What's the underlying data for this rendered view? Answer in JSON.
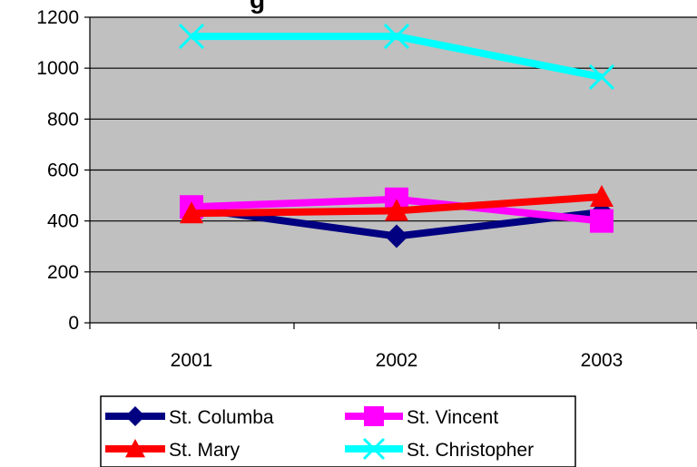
{
  "chart_data": {
    "type": "line",
    "title": "g",
    "xlabel": "",
    "ylabel": "",
    "categories": [
      "2001",
      "2002",
      "2003"
    ],
    "ylim": [
      0,
      1200
    ],
    "yticks": [
      0,
      200,
      400,
      600,
      800,
      1000,
      1200
    ],
    "grid": true,
    "plot_background": "#c0c0c0",
    "legend_placement": "bottom",
    "series": [
      {
        "name": "St. Columba",
        "values": [
          450,
          340,
          435
        ],
        "color": "#000080",
        "marker": "diamond"
      },
      {
        "name": "St. Vincent",
        "values": [
          455,
          485,
          400
        ],
        "color": "#ff00ff",
        "marker": "square"
      },
      {
        "name": "St. Mary",
        "values": [
          430,
          440,
          495
        ],
        "color": "#ff0000",
        "marker": "triangle"
      },
      {
        "name": "St. Christopher",
        "values": [
          1125,
          1125,
          965
        ],
        "color": "#00ffff",
        "marker": "x"
      }
    ]
  }
}
